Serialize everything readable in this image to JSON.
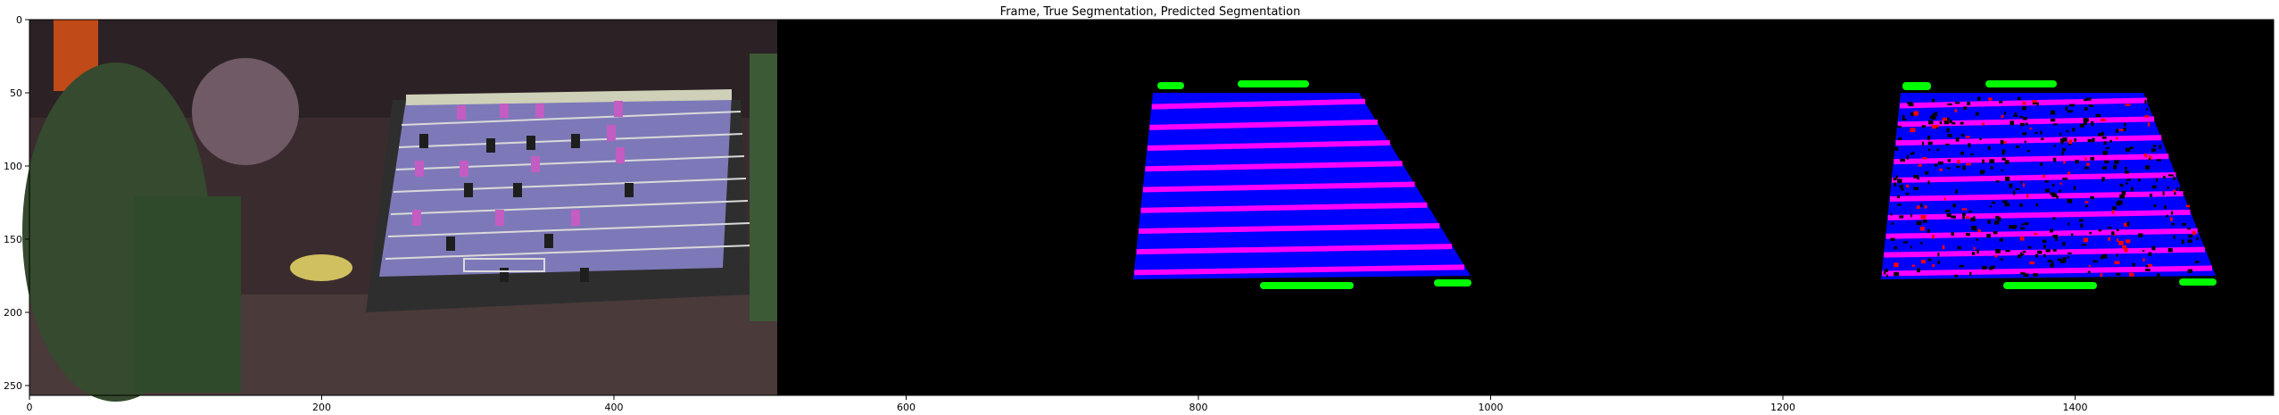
{
  "figure": {
    "title": "Frame, True Segmentation, Predicted Segmentation",
    "x_ticks": [
      "0",
      "200",
      "400",
      "600",
      "800",
      "1000",
      "1200",
      "1400"
    ],
    "y_ticks": [
      "0",
      "50",
      "100",
      "150",
      "200",
      "250"
    ],
    "panels": [
      {
        "name": "frame"
      },
      {
        "name": "true-segmentation"
      },
      {
        "name": "predicted-segmentation"
      }
    ],
    "colors": {
      "table_region": "#0000ff",
      "rod_stripes": "#ff00ff",
      "handles": "#00ff00",
      "prediction_errors": "#ff0000",
      "background_mask": "#000000"
    },
    "x_range": [
      0,
      1536
    ],
    "y_range": [
      0,
      256
    ]
  }
}
